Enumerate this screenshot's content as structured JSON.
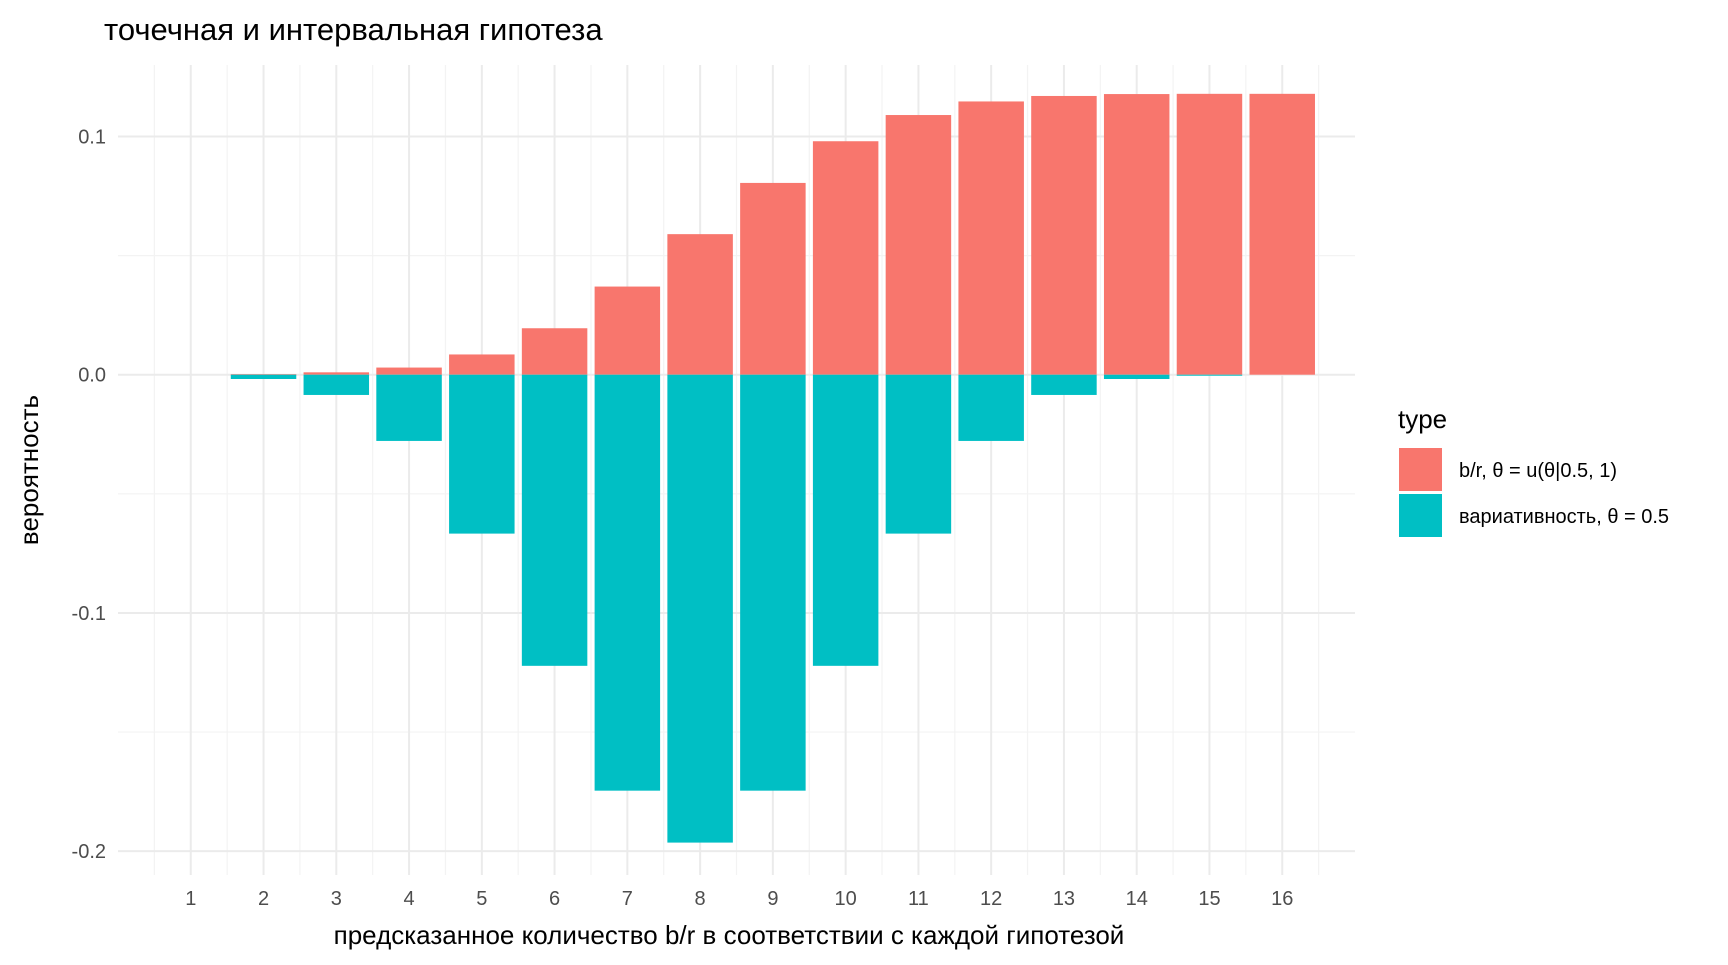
{
  "chart_data": {
    "type": "bar",
    "title": "точечная и интервальная гипотеза",
    "xlabel": "предсказанное количество b/r в соответствии с каждой гипотезой",
    "ylabel": "вероятность",
    "categories": [
      "1",
      "2",
      "3",
      "4",
      "5",
      "6",
      "7",
      "8",
      "9",
      "10",
      "11",
      "12",
      "13",
      "14",
      "15",
      "16"
    ],
    "yticks": [
      0.1,
      0.0,
      -0.1,
      -0.2
    ],
    "ytick_labels": [
      "0.1",
      "0.0",
      "-0.1",
      "-0.2"
    ],
    "ylim": [
      -0.21,
      0.13
    ],
    "xlim": [
      0,
      17
    ],
    "grid": true,
    "legend": {
      "title": "type",
      "position": "right"
    },
    "series": [
      {
        "name": "b/r, θ = u(θ|0.5, 1)",
        "color": "#F8766D",
        "values": [
          0.0,
          0.0002,
          0.001,
          0.003,
          0.0085,
          0.0195,
          0.037,
          0.059,
          0.0805,
          0.098,
          0.109,
          0.1147,
          0.117,
          0.1178,
          0.1179,
          0.1179
        ]
      },
      {
        "name": "вариативность, θ = 0.5",
        "color": "#00BFC4",
        "values": [
          0.0,
          -0.0018,
          -0.0085,
          -0.0278,
          -0.0667,
          -0.1222,
          -0.1746,
          -0.1964,
          -0.1746,
          -0.1222,
          -0.0667,
          -0.0278,
          -0.0085,
          -0.0018,
          -0.0002,
          0.0
        ]
      }
    ]
  }
}
